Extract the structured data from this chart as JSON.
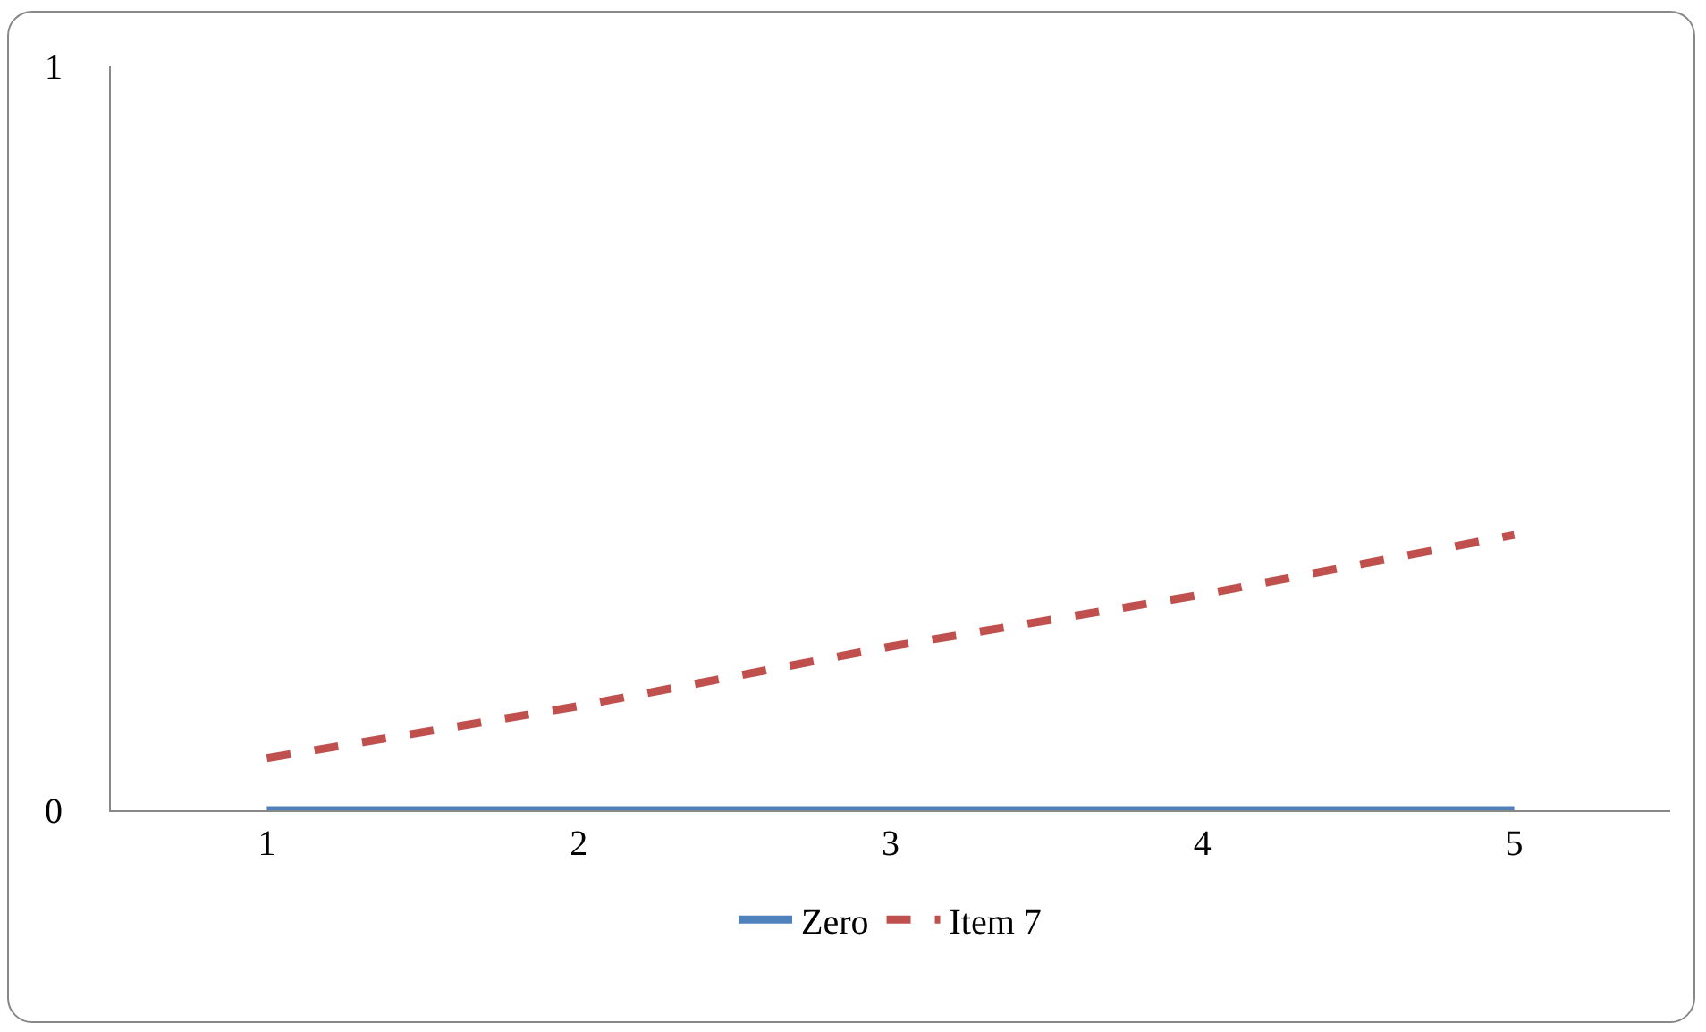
{
  "chart_data": {
    "type": "line",
    "categories": [
      "1",
      "2",
      "3",
      "4",
      "5"
    ],
    "ylim": [
      0,
      1
    ],
    "yticks": [
      0,
      1
    ],
    "grid": false,
    "legend": "bottom",
    "marker": "none",
    "series": [
      {
        "name": "Zero",
        "color": "#4f81bd",
        "line_style": "solid",
        "values": [
          0,
          0,
          0,
          0,
          0
        ]
      },
      {
        "name": "Item 7",
        "color": "#c0504d",
        "line_style": "dashed",
        "values": [
          0.07,
          0.14,
          0.22,
          0.29,
          0.37
        ]
      }
    ]
  }
}
